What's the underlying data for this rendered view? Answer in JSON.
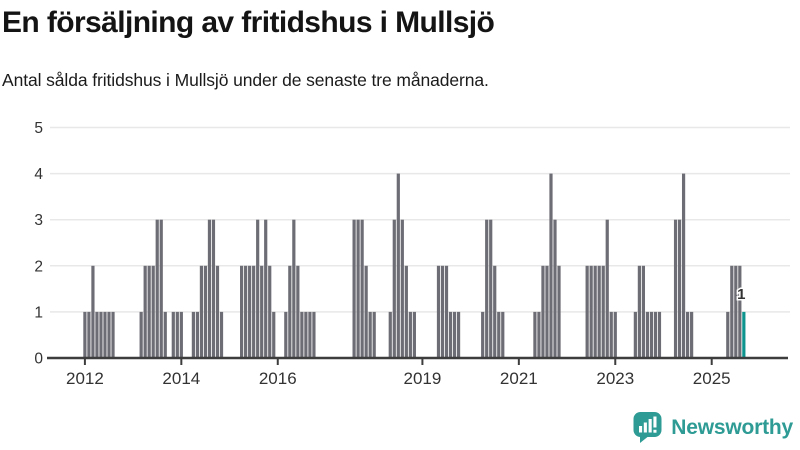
{
  "header": {
    "title": "En försäljning av fritidshus i Mullsjö",
    "subtitle": "Antal sålda fritidshus i Mullsjö under de senaste tre månaderna."
  },
  "chart_data": {
    "type": "bar",
    "title": "En försäljning av fritidshus i Mullsjö",
    "subtitle": "Antal sålda fritidshus i Mullsjö under de senaste tre månaderna.",
    "x_unit": "month",
    "x_start": "2012-01",
    "ylim": [
      0,
      5
    ],
    "y_ticks": [
      0,
      1,
      2,
      3,
      4,
      5
    ],
    "grid": true,
    "legend": "none",
    "x_ticks": [
      {
        "month_index": 0,
        "label": "2012"
      },
      {
        "month_index": 24,
        "label": "2014"
      },
      {
        "month_index": 48,
        "label": "2016"
      },
      {
        "month_index": 84,
        "label": "2019"
      },
      {
        "month_index": 108,
        "label": "2021"
      },
      {
        "month_index": 132,
        "label": "2023"
      },
      {
        "month_index": 156,
        "label": "2025"
      }
    ],
    "bars": [
      [
        0,
        1
      ],
      [
        1,
        1
      ],
      [
        2,
        2
      ],
      [
        3,
        1
      ],
      [
        4,
        1
      ],
      [
        5,
        1
      ],
      [
        6,
        1
      ],
      [
        7,
        1
      ],
      [
        14,
        1
      ],
      [
        15,
        2
      ],
      [
        16,
        2
      ],
      [
        17,
        2
      ],
      [
        18,
        3
      ],
      [
        19,
        3
      ],
      [
        20,
        1
      ],
      [
        22,
        1
      ],
      [
        23,
        1
      ],
      [
        24,
        1
      ],
      [
        27,
        1
      ],
      [
        28,
        1
      ],
      [
        29,
        2
      ],
      [
        30,
        2
      ],
      [
        31,
        3
      ],
      [
        32,
        3
      ],
      [
        33,
        2
      ],
      [
        34,
        1
      ],
      [
        39,
        2
      ],
      [
        40,
        2
      ],
      [
        41,
        2
      ],
      [
        42,
        2
      ],
      [
        43,
        3
      ],
      [
        44,
        2
      ],
      [
        45,
        3
      ],
      [
        46,
        2
      ],
      [
        47,
        1
      ],
      [
        50,
        1
      ],
      [
        51,
        2
      ],
      [
        52,
        3
      ],
      [
        53,
        2
      ],
      [
        54,
        1
      ],
      [
        55,
        1
      ],
      [
        56,
        1
      ],
      [
        57,
        1
      ],
      [
        67,
        3
      ],
      [
        68,
        3
      ],
      [
        69,
        3
      ],
      [
        70,
        2
      ],
      [
        71,
        1
      ],
      [
        72,
        1
      ],
      [
        76,
        1
      ],
      [
        77,
        3
      ],
      [
        78,
        4
      ],
      [
        79,
        3
      ],
      [
        80,
        2
      ],
      [
        81,
        1
      ],
      [
        82,
        1
      ],
      [
        88,
        2
      ],
      [
        89,
        2
      ],
      [
        90,
        2
      ],
      [
        91,
        1
      ],
      [
        92,
        1
      ],
      [
        93,
        1
      ],
      [
        99,
        1
      ],
      [
        100,
        3
      ],
      [
        101,
        3
      ],
      [
        102,
        2
      ],
      [
        103,
        1
      ],
      [
        104,
        1
      ],
      [
        112,
        1
      ],
      [
        113,
        1
      ],
      [
        114,
        2
      ],
      [
        115,
        2
      ],
      [
        116,
        4
      ],
      [
        117,
        3
      ],
      [
        118,
        2
      ],
      [
        125,
        2
      ],
      [
        126,
        2
      ],
      [
        127,
        2
      ],
      [
        128,
        2
      ],
      [
        129,
        2
      ],
      [
        130,
        3
      ],
      [
        131,
        1
      ],
      [
        132,
        1
      ],
      [
        137,
        1
      ],
      [
        138,
        2
      ],
      [
        139,
        2
      ],
      [
        140,
        1
      ],
      [
        141,
        1
      ],
      [
        142,
        1
      ],
      [
        143,
        1
      ],
      [
        147,
        3
      ],
      [
        148,
        3
      ],
      [
        149,
        4
      ],
      [
        150,
        1
      ],
      [
        151,
        1
      ],
      [
        160,
        1
      ],
      [
        161,
        2
      ],
      [
        162,
        2
      ],
      [
        163,
        2
      ],
      [
        164,
        1
      ]
    ],
    "highlight": {
      "month_index": 164,
      "value": 1,
      "label": "1"
    },
    "colors": {
      "bar": "#6d6d75",
      "highlight": "#0e948e",
      "grid": "#e8e8e8",
      "axis": "#3d3d3d",
      "tick_text": "#333333",
      "annotation_text": "#333333",
      "annotation_halo": "#ffffff",
      "brand": "#2e9b94"
    }
  },
  "footer": {
    "brand": "Newsworthy"
  }
}
